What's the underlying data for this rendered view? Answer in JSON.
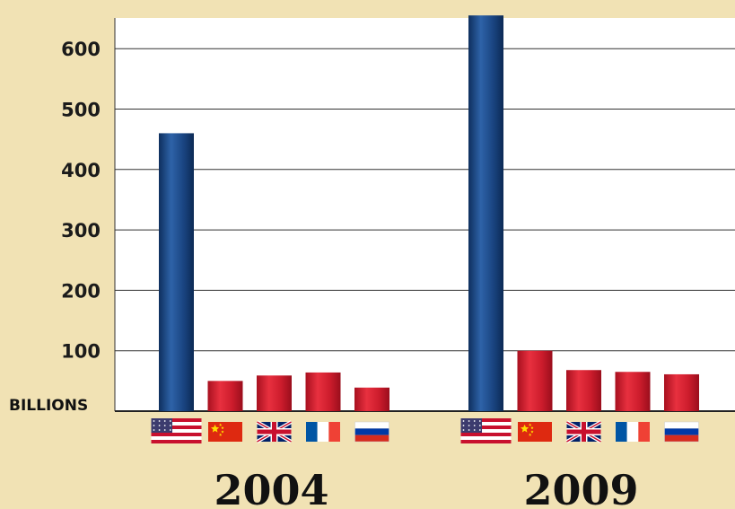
{
  "chart_data": {
    "type": "bar",
    "unit_label": "BILLIONS",
    "ylim": [
      0,
      650
    ],
    "yticks": [
      "100",
      "200",
      "300",
      "400",
      "500",
      "600"
    ],
    "grid": true,
    "categories": [
      "2004",
      "2009"
    ],
    "series": [
      {
        "country": "united-states",
        "color": "#1f4e8c",
        "values": [
          460,
          655
        ]
      },
      {
        "country": "china",
        "color": "#d41f32",
        "values": [
          50,
          100
        ]
      },
      {
        "country": "united-kingdom",
        "color": "#d41f32",
        "values": [
          59,
          68
        ]
      },
      {
        "country": "france",
        "color": "#d41f32",
        "values": [
          64,
          65
        ]
      },
      {
        "country": "russia",
        "color": "#d41f32",
        "values": [
          39,
          61
        ]
      }
    ]
  }
}
